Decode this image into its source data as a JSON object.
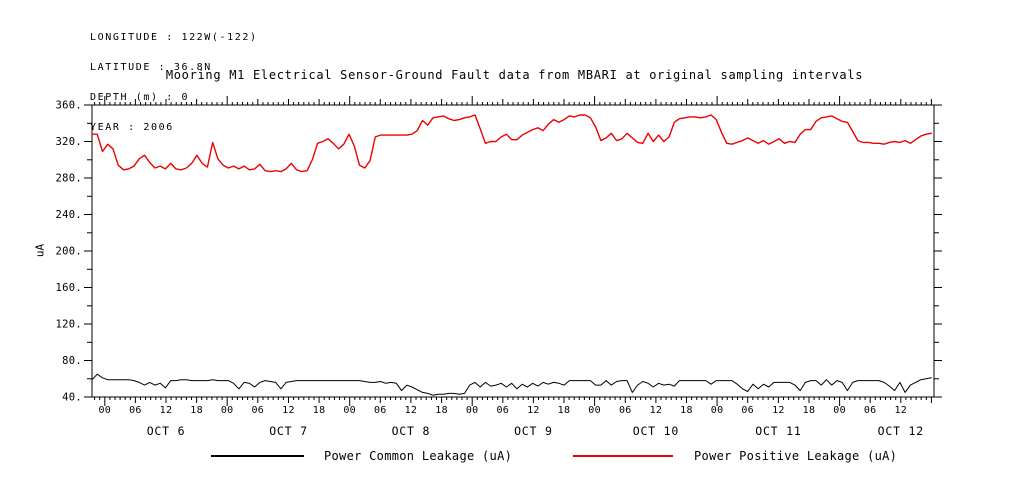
{
  "info": {
    "lines": [
      "LONGITUDE : 122W(-122)",
      "LATITUDE : 36.8N",
      "DEPTH (m) : 0",
      "YEAR : 2006"
    ]
  },
  "title": "Mooring M1 Electrical Sensor-Ground Fault data from MBARI at original sampling intervals",
  "chart_data": {
    "type": "line",
    "title": "Mooring M1 Electrical Sensor-Ground Fault data from MBARI at original sampling intervals",
    "ylabel": "uA",
    "ylim": [
      40,
      360
    ],
    "y_major_tick": 40,
    "y_minor_tick": 20,
    "x_domain_hours": [
      -2.5,
      162.5
    ],
    "x_minor_tick_hours": 1,
    "x_label_tick_hours": 6,
    "grid": false,
    "legend_position": "bottom",
    "days": [
      {
        "label": "OCT 6",
        "noon_hour": 12
      },
      {
        "label": "OCT 7",
        "noon_hour": 36
      },
      {
        "label": "OCT 8",
        "noon_hour": 60
      },
      {
        "label": "OCT 9",
        "noon_hour": 84
      },
      {
        "label": "OCT 10",
        "noon_hour": 108
      },
      {
        "label": "OCT 11",
        "noon_hour": 132
      },
      {
        "label": "OCT 12",
        "noon_hour": 156
      }
    ],
    "series": [
      {
        "name": "Power Common Leakage (uA)",
        "color": "#000000",
        "start_hour": -2.5,
        "step_hours": 1.028,
        "values": [
          59,
          65,
          61,
          59,
          59,
          59,
          59,
          59,
          58,
          56,
          53,
          56,
          53,
          55,
          50,
          58,
          58,
          59,
          59,
          58,
          58,
          58,
          58,
          59,
          58,
          58,
          58,
          55,
          49,
          56,
          55,
          51,
          56,
          58,
          57,
          56,
          49,
          56,
          57,
          58,
          58,
          58,
          58,
          58,
          58,
          58,
          58,
          58,
          58,
          58,
          58,
          58,
          57,
          56,
          56,
          57,
          55,
          56,
          55,
          47,
          53,
          51,
          48,
          45,
          44,
          42,
          43,
          43,
          44,
          44,
          43,
          44,
          53,
          56,
          51,
          56,
          52,
          53,
          55,
          51,
          55,
          49,
          54,
          51,
          55,
          52,
          56,
          54,
          56,
          55,
          53,
          58,
          58,
          58,
          58,
          58,
          53,
          53,
          58,
          53,
          57,
          58,
          58,
          45,
          53,
          57,
          55,
          51,
          55,
          53,
          54,
          52,
          58,
          58,
          58,
          58,
          58,
          58,
          54,
          58,
          58,
          58,
          58,
          54,
          49,
          46,
          54,
          49,
          54,
          51,
          56,
          56,
          56,
          56,
          53,
          47,
          56,
          58,
          58,
          53,
          59,
          53,
          58,
          56,
          47,
          56,
          58,
          58,
          58,
          58,
          58,
          56,
          52,
          47,
          56,
          45,
          53,
          56,
          59,
          60,
          61
        ]
      },
      {
        "name": "Power Positive Leakage (uA)",
        "color": "#ee0000",
        "start_hour": -2.5,
        "step_hours": 1.028,
        "values": [
          328,
          328,
          309,
          317,
          312,
          294,
          289,
          290,
          293,
          301,
          305,
          297,
          291,
          293,
          290,
          296,
          290,
          289,
          291,
          296,
          305,
          296,
          292,
          319,
          301,
          294,
          291,
          293,
          290,
          293,
          289,
          290,
          295,
          288,
          287,
          288,
          287,
          290,
          296,
          289,
          287,
          288,
          300,
          318,
          320,
          323,
          318,
          312,
          317,
          328,
          315,
          294,
          291,
          299,
          325,
          327,
          327,
          327,
          327,
          327,
          327,
          328,
          332,
          343,
          338,
          346,
          347,
          348,
          345,
          343,
          344,
          346,
          347,
          349,
          334,
          318,
          320,
          320,
          325,
          328,
          322,
          322,
          327,
          330,
          333,
          335,
          332,
          339,
          344,
          341,
          344,
          348,
          347,
          349,
          349,
          346,
          336,
          321,
          324,
          329,
          321,
          323,
          329,
          324,
          319,
          318,
          329,
          320,
          327,
          320,
          325,
          341,
          345,
          346,
          347,
          347,
          346,
          347,
          349,
          344,
          330,
          318,
          317,
          319,
          321,
          324,
          321,
          318,
          321,
          317,
          320,
          323,
          318,
          320,
          319,
          328,
          333,
          333,
          342,
          346,
          347,
          348,
          345,
          342,
          341,
          331,
          321,
          319,
          319,
          318,
          318,
          317,
          319,
          320,
          319,
          321,
          318,
          322,
          326,
          328,
          329
        ]
      }
    ]
  }
}
